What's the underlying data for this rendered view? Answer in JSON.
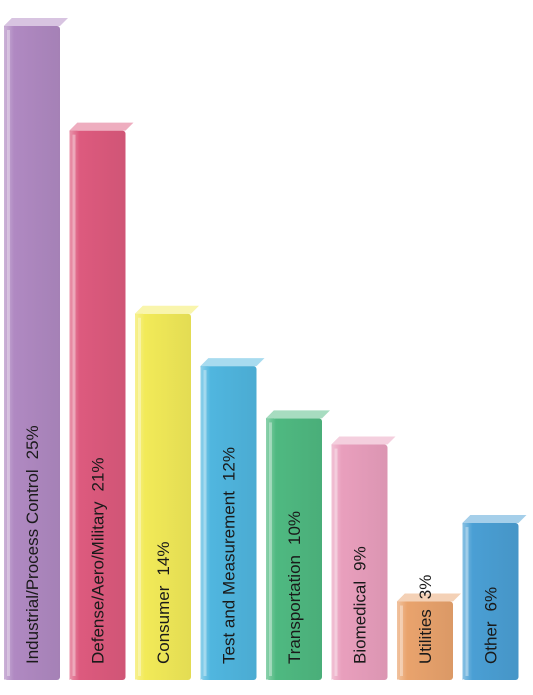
{
  "chart_data": {
    "type": "bar",
    "title": "",
    "xlabel": "",
    "ylabel": "",
    "ylim": [
      0,
      25
    ],
    "grid": false,
    "legend": "none",
    "style": "3d-bars-with-rotated-in-bar-labels",
    "categories": [
      "Industrial/Process Control",
      "Defense/Aero/Military",
      "Consumer",
      "Test and Measurement",
      "Transportation",
      "Biomedical",
      "Utilities",
      "Other"
    ],
    "values": [
      25,
      21,
      14,
      12,
      10,
      9,
      3,
      6
    ],
    "value_labels": [
      "25%",
      "21%",
      "14%",
      "12%",
      "10%",
      "9%",
      "3%",
      "6%"
    ],
    "colors": [
      "#b089c2",
      "#dd5a7e",
      "#f2ea58",
      "#50b6df",
      "#4fb981",
      "#e99fbd",
      "#e9a36d",
      "#4a9fd4"
    ]
  }
}
